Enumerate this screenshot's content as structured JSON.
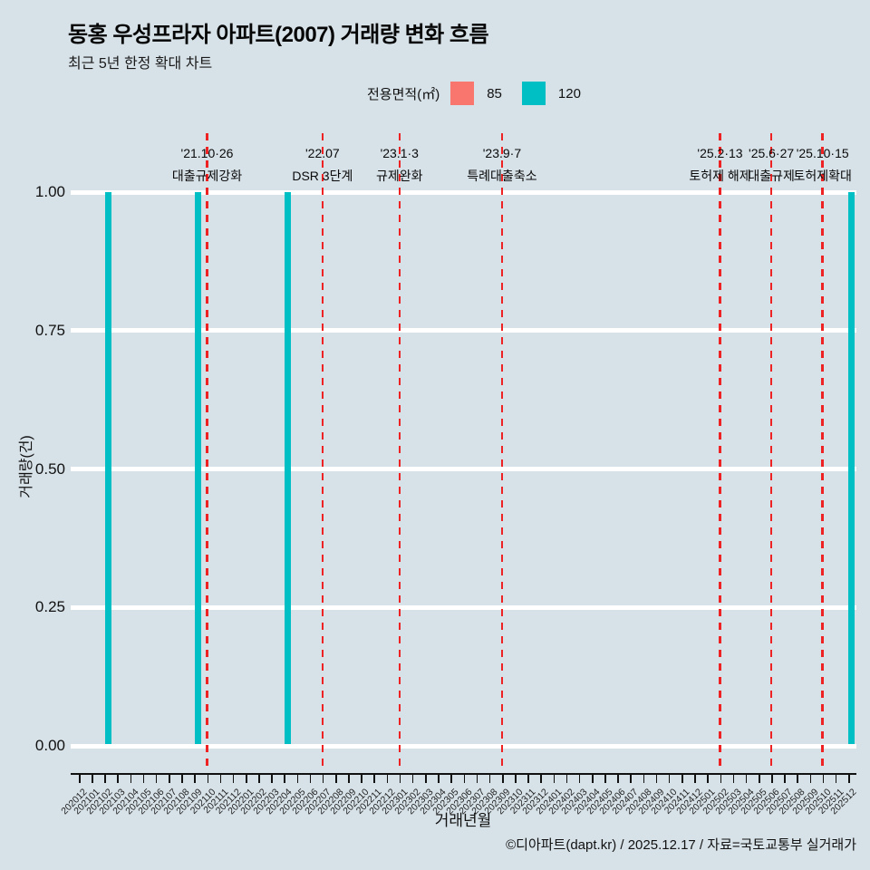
{
  "header": {
    "title": "동홍 우성프라자 아파트(2007) 거래량 변화 흐름",
    "subtitle": "최근 5년 한정 확대 차트"
  },
  "legend": {
    "title": "전용면적(㎡)",
    "items": [
      {
        "label": "85",
        "color": "#F8766D"
      },
      {
        "label": "120",
        "color": "#00BFC4"
      }
    ]
  },
  "events": [
    {
      "date": "'21.10·26",
      "label": "대출규제강화",
      "month": "202110"
    },
    {
      "date": "'22.07",
      "label": "DSR 3단계",
      "month": "202207"
    },
    {
      "date": "'23.1·3",
      "label": "규제완화",
      "month": "202301"
    },
    {
      "date": "'23.9·7",
      "label": "특례대출축소",
      "month": "202309"
    },
    {
      "date": "'25.2·13",
      "label": "토허제 해제",
      "month": "202502"
    },
    {
      "date": "'25.6·27",
      "label": "대출규제",
      "month": "202506"
    },
    {
      "date": "'25.10·15",
      "label": "토허제확대",
      "month": "202510"
    }
  ],
  "chart_data": {
    "type": "bar",
    "title": "동홍 우성프라자 아파트(2007) 거래량 변화 흐름",
    "xlabel": "거래년월",
    "ylabel": "거래량(건)",
    "ylim": [
      0,
      1
    ],
    "ytick_values": [
      0,
      0.25,
      0.5,
      0.75,
      1
    ],
    "ytick_labels": [
      "0.00",
      "0.25",
      "0.50",
      "0.75",
      "1.00"
    ],
    "grid": "major-horizontal-white",
    "legend_position": "top-center",
    "categories": [
      "202012",
      "202101",
      "202102",
      "202103",
      "202104",
      "202105",
      "202106",
      "202107",
      "202108",
      "202109",
      "202110",
      "202111",
      "202112",
      "202201",
      "202202",
      "202203",
      "202204",
      "202205",
      "202206",
      "202207",
      "202208",
      "202209",
      "202210",
      "202211",
      "202212",
      "202301",
      "202302",
      "202303",
      "202304",
      "202305",
      "202306",
      "202307",
      "202308",
      "202309",
      "202310",
      "202311",
      "202312",
      "202401",
      "202402",
      "202403",
      "202404",
      "202405",
      "202406",
      "202407",
      "202408",
      "202409",
      "202410",
      "202411",
      "202412",
      "202501",
      "202502",
      "202503",
      "202504",
      "202505",
      "202506",
      "202507",
      "202508",
      "202509",
      "202510",
      "202511",
      "202512"
    ],
    "series": [
      {
        "name": "85",
        "color": "#F8766D",
        "values": [
          0,
          0,
          0,
          0,
          0,
          0,
          0,
          0,
          0,
          0,
          0,
          0,
          0,
          0,
          0,
          0,
          0,
          0,
          0,
          0,
          0,
          0,
          0,
          0,
          0,
          0,
          0,
          0,
          0,
          0,
          0,
          0,
          0,
          0,
          0,
          0,
          0,
          0,
          0,
          0,
          0,
          0,
          0,
          0,
          0,
          0,
          0,
          0,
          0,
          0,
          0,
          0,
          0,
          0,
          0,
          0,
          0,
          0,
          0,
          0,
          0
        ]
      },
      {
        "name": "120",
        "color": "#00BFC4",
        "values": [
          0,
          0,
          1,
          0,
          0,
          0,
          0,
          0,
          0,
          1,
          0,
          0,
          0,
          0,
          0,
          0,
          1,
          0,
          0,
          0,
          0,
          0,
          0,
          0,
          0,
          0,
          0,
          0,
          0,
          0,
          0,
          0,
          0,
          0,
          0,
          0,
          0,
          0,
          0,
          0,
          0,
          0,
          0,
          0,
          0,
          0,
          0,
          0,
          0,
          0,
          0,
          0,
          0,
          0,
          0,
          0,
          0,
          0,
          0,
          0,
          1
        ]
      }
    ]
  },
  "footer": {
    "credit": "©디아파트(dapt.kr) / 2025.12.17 / 자료=국토교통부 실거래가"
  },
  "colors": {
    "background": "#D7E2E8",
    "bar_85": "#F8766D",
    "bar_120": "#00BFC4",
    "event_line": "#EE2222",
    "gridline": "#FFFFFF",
    "axis": "#111111",
    "text": "#111111"
  }
}
